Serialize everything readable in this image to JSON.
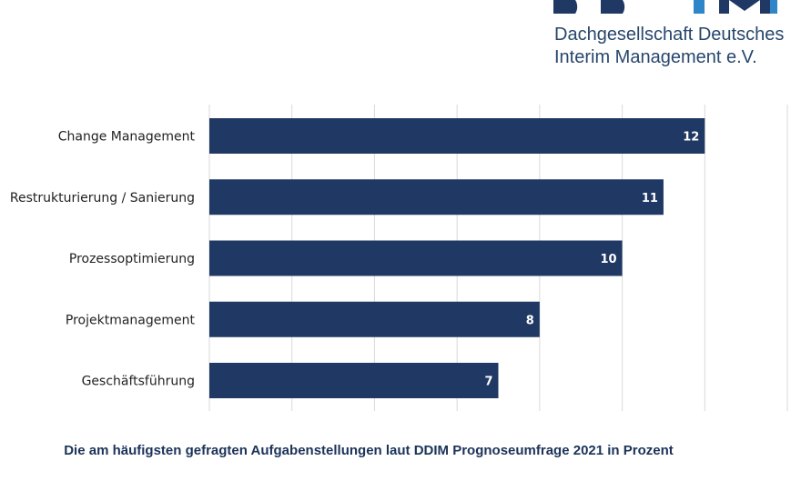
{
  "logo": {
    "line1": "Dachgesellschaft Deutsches",
    "line2": "Interim Management e.V.",
    "colors": {
      "navy": "#1f3864",
      "accent": "#2e86c8"
    }
  },
  "caption": "Die am häufigsten gefragten Aufgabenstellungen laut DDIM Prognoseumfrage 2021 in Prozent",
  "chart_data": {
    "type": "bar",
    "orientation": "horizontal",
    "categories": [
      "Change Management",
      "Restrukturierung / Sanierung",
      "Prozessoptimierung",
      "Projektmanagement",
      "Geschäftsführung"
    ],
    "values": [
      12,
      11,
      10,
      8,
      7
    ],
    "data_labels": [
      "12",
      "11",
      "10",
      "8",
      "7"
    ],
    "xlim": [
      0,
      14
    ],
    "x_gridlines": [
      0,
      2,
      4,
      6,
      8,
      10,
      12,
      14
    ],
    "grid": true,
    "bar_color": "#1f3864",
    "grid_color": "#d9d9d9"
  }
}
